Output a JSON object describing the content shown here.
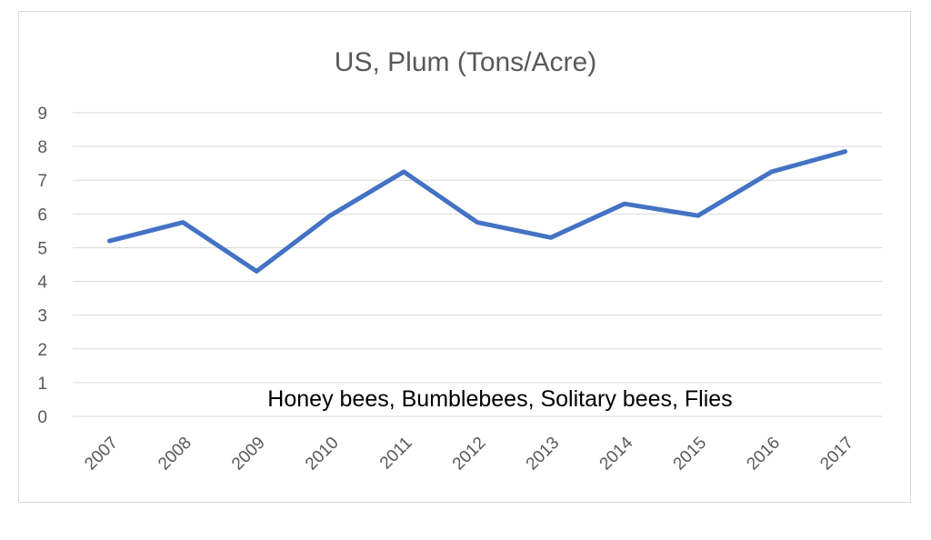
{
  "chart_data": {
    "type": "line",
    "title": "US, Plum (Tons/Acre)",
    "xlabel": "",
    "ylabel": "",
    "categories": [
      "2007",
      "2008",
      "2009",
      "2010",
      "2011",
      "2012",
      "2013",
      "2014",
      "2015",
      "2016",
      "2017"
    ],
    "series": [
      {
        "values": [
          5.2,
          5.75,
          4.3,
          5.95,
          7.25,
          5.75,
          5.3,
          6.3,
          5.95,
          7.25,
          7.85
        ]
      }
    ],
    "ylim": [
      0,
      9
    ],
    "yticks": [
      0,
      1,
      2,
      3,
      4,
      5,
      6,
      7,
      8,
      9
    ],
    "grid": true,
    "legend": "none",
    "annotation": "Honey bees, Bumblebees, Solitary bees, Flies",
    "colors": {
      "series": "#4472c4",
      "grid": "#d9d9d9",
      "text": "#595959"
    }
  }
}
